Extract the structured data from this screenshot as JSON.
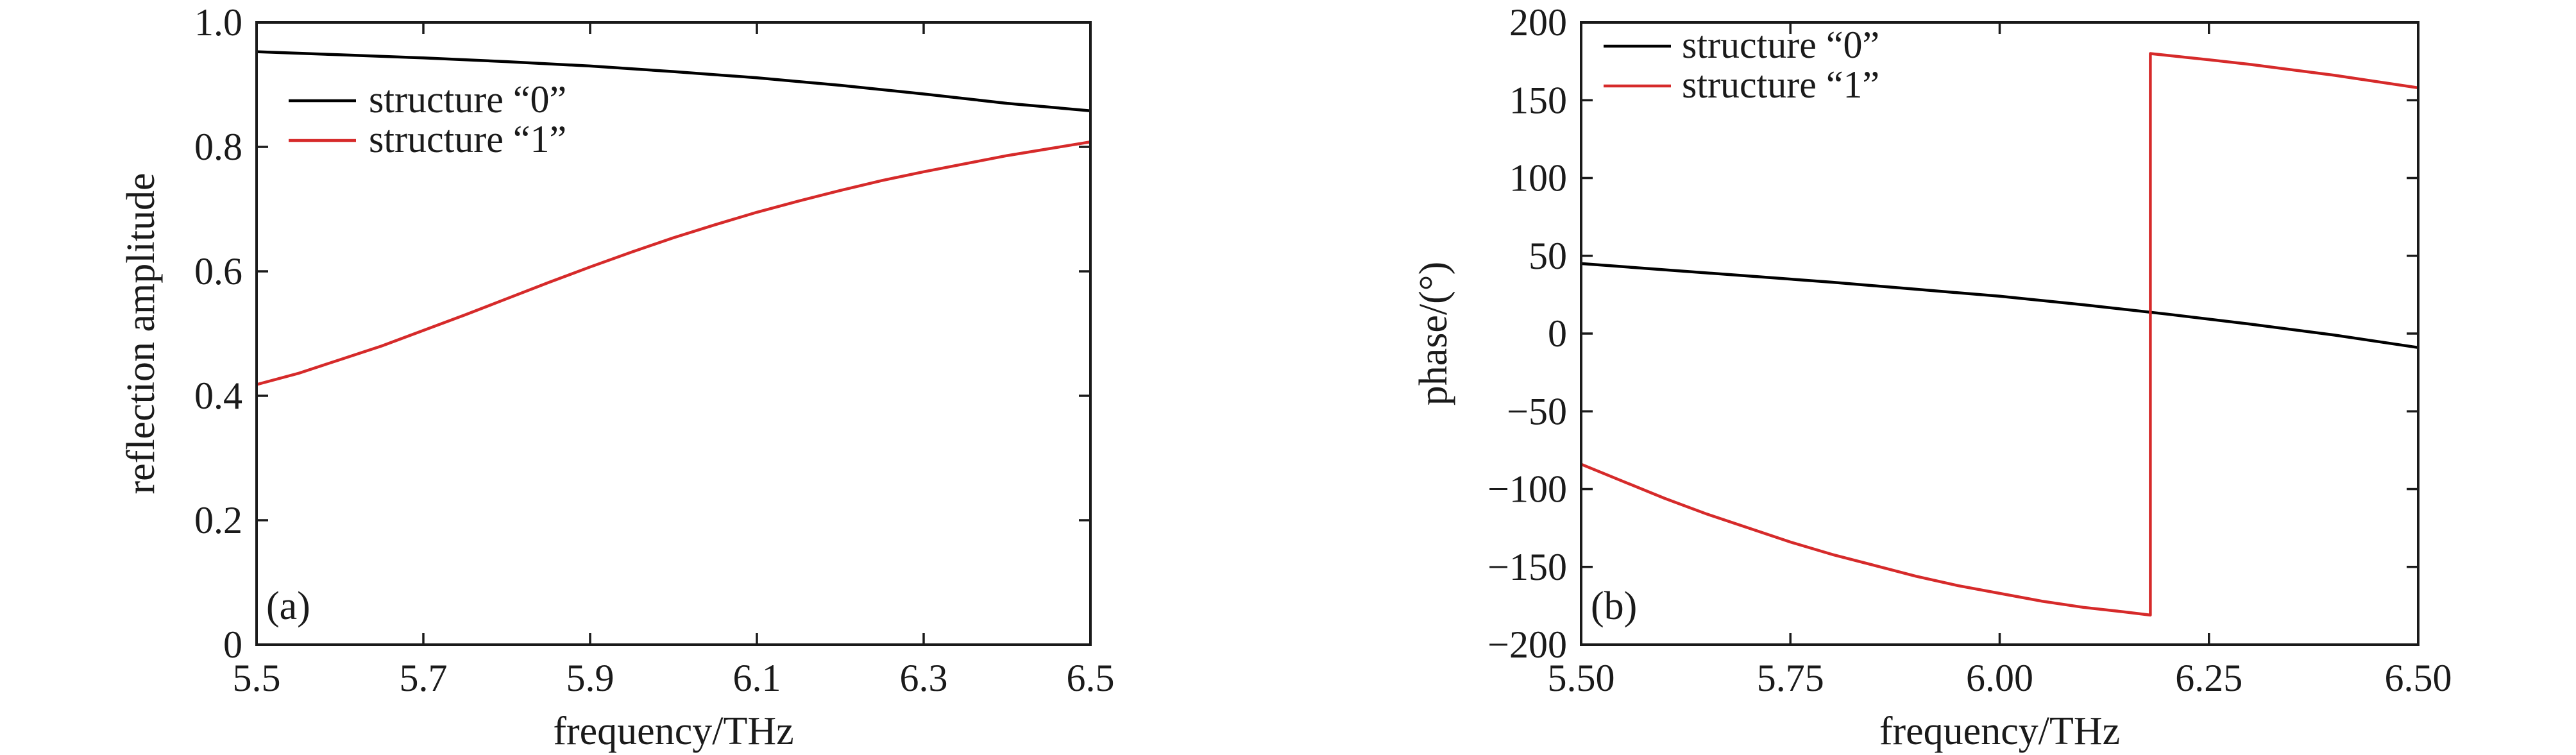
{
  "chart_data": [
    {
      "type": "line",
      "panel_label": "(a)",
      "xlabel": "frequency/THz",
      "ylabel": "reflection amplitude",
      "xlim": [
        5.5,
        6.5
      ],
      "ylim": [
        0,
        1.0
      ],
      "xticks": [
        5.5,
        5.7,
        5.9,
        6.1,
        6.3,
        6.5
      ],
      "xtick_labels": [
        "5.5",
        "5.7",
        "5.9",
        "6.1",
        "6.3",
        "6.5"
      ],
      "yticks": [
        0,
        0.2,
        0.4,
        0.6,
        0.8,
        1.0
      ],
      "ytick_labels": [
        "0",
        "0.2",
        "0.4",
        "0.6",
        "0.8",
        "1.0"
      ],
      "grid": false,
      "legend_position": "top-left",
      "series": [
        {
          "name": "structure “0”",
          "color": "#000000",
          "x": [
            5.5,
            5.6,
            5.7,
            5.8,
            5.9,
            6.0,
            6.1,
            6.2,
            6.3,
            6.4,
            6.5
          ],
          "y": [
            0.953,
            0.948,
            0.943,
            0.937,
            0.93,
            0.921,
            0.911,
            0.899,
            0.885,
            0.87,
            0.858
          ]
        },
        {
          "name": "structure “1”",
          "color": "#d62a2a",
          "x": [
            5.5,
            5.55,
            5.6,
            5.65,
            5.7,
            5.75,
            5.8,
            5.85,
            5.9,
            5.95,
            6.0,
            6.05,
            6.1,
            6.15,
            6.2,
            6.25,
            6.3,
            6.35,
            6.4,
            6.45,
            6.5
          ],
          "y": [
            0.418,
            0.436,
            0.458,
            0.48,
            0.505,
            0.53,
            0.556,
            0.582,
            0.607,
            0.631,
            0.654,
            0.675,
            0.695,
            0.713,
            0.73,
            0.746,
            0.76,
            0.773,
            0.786,
            0.797,
            0.808
          ]
        }
      ]
    },
    {
      "type": "line",
      "panel_label": "(b)",
      "xlabel": "frequency/THz",
      "ylabel": "phase/(°)",
      "xlim": [
        5.5,
        6.5
      ],
      "ylim": [
        -200,
        200
      ],
      "xticks": [
        5.5,
        5.75,
        6.0,
        6.25,
        6.5
      ],
      "xtick_labels": [
        "5.50",
        "5.75",
        "6.00",
        "6.25",
        "6.50"
      ],
      "yticks": [
        -200,
        -150,
        -100,
        -50,
        0,
        50,
        100,
        150,
        200
      ],
      "ytick_labels": [
        "−200",
        "−150",
        "−100",
        "−50",
        "0",
        "50",
        "100",
        "150",
        "200"
      ],
      "grid": false,
      "legend_position": "top-left",
      "series": [
        {
          "name": "structure “0”",
          "color": "#000000",
          "x": [
            5.5,
            5.6,
            5.7,
            5.8,
            5.9,
            6.0,
            6.1,
            6.2,
            6.3,
            6.4,
            6.5
          ],
          "y": [
            45,
            41,
            37,
            33,
            28.5,
            24,
            18.5,
            12.5,
            6,
            -1,
            -9
          ]
        },
        {
          "name": "structure “1”",
          "color": "#d62a2a",
          "x": [
            5.5,
            5.55,
            5.6,
            5.65,
            5.7,
            5.75,
            5.8,
            5.85,
            5.9,
            5.95,
            6.0,
            6.05,
            6.1,
            6.15,
            6.18,
            6.18,
            6.25,
            6.3,
            6.4,
            6.5
          ],
          "y": [
            -84,
            -95,
            -106,
            -116,
            -125,
            -134,
            -142,
            -149,
            -156,
            -162,
            -167,
            -172,
            -176,
            -179,
            -181,
            180,
            176,
            173,
            166,
            158
          ]
        }
      ]
    }
  ]
}
